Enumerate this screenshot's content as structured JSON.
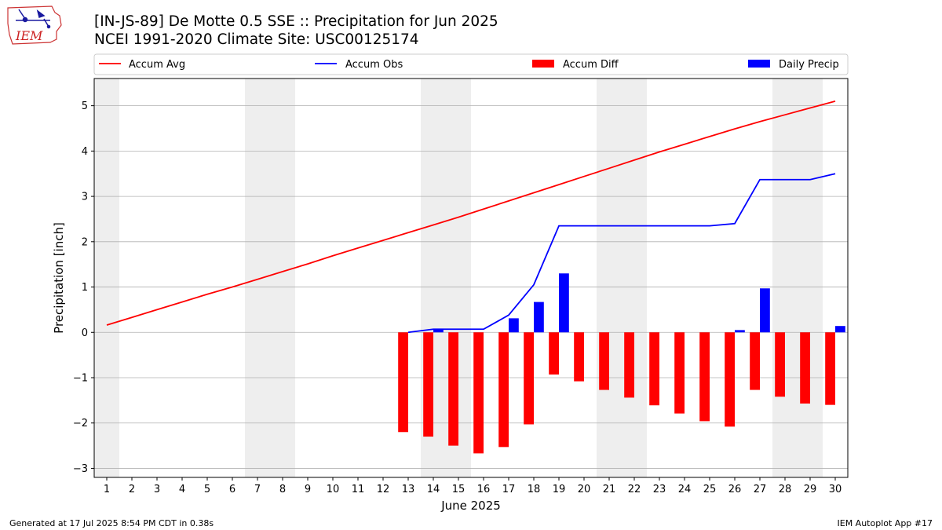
{
  "header": {
    "title_line1": "[IN-JS-89] De Motte 0.5 SSE :: Precipitation for Jun 2025",
    "title_line2": "NCEI 1991-2020 Climate Site: USC00125174",
    "logo_text": "IEM"
  },
  "footer": {
    "generated": "Generated at 17 Jul 2025 8:54 PM CDT in 0.38s",
    "app": "IEM Autoplot App #17"
  },
  "colors": {
    "avg": "#ff0000",
    "obs": "#0000ff",
    "diff": "#ff0000",
    "daily": "#0000ff",
    "weekend_shade": "#eeeeee",
    "grid": "#b0b0b0"
  },
  "chart_data": {
    "type": "bar",
    "xlabel": "June 2025",
    "ylabel": "Precipitation [inch]",
    "ylim": [
      -3.2,
      5.6
    ],
    "yticks": [
      -3,
      -2,
      -1,
      0,
      1,
      2,
      3,
      4,
      5
    ],
    "ytick_labels": [
      "−3",
      "−2",
      "−1",
      "0",
      "1",
      "2",
      "3",
      "4",
      "5"
    ],
    "grid": "horizontal",
    "legend": {
      "placement": "top",
      "entries": [
        "Accum Avg",
        "Accum Obs",
        "Accum Diff",
        "Daily Precip"
      ]
    },
    "days": [
      1,
      2,
      3,
      4,
      5,
      6,
      7,
      8,
      9,
      10,
      11,
      12,
      13,
      14,
      15,
      16,
      17,
      18,
      19,
      20,
      21,
      22,
      23,
      24,
      25,
      26,
      27,
      28,
      29,
      30
    ],
    "weekend_days": [
      1,
      7,
      8,
      14,
      15,
      21,
      22,
      28,
      29
    ],
    "series": [
      {
        "name": "Accum Avg",
        "kind": "line",
        "x": [
          1,
          2,
          3,
          4,
          5,
          6,
          7,
          8,
          9,
          10,
          11,
          12,
          13,
          14,
          15,
          16,
          17,
          18,
          19,
          20,
          21,
          22,
          23,
          24,
          25,
          26,
          27,
          28,
          29,
          30
        ],
        "values": [
          0.16,
          0.33,
          0.5,
          0.67,
          0.84,
          1.0,
          1.17,
          1.34,
          1.51,
          1.69,
          1.86,
          2.03,
          2.2,
          2.37,
          2.54,
          2.72,
          2.9,
          3.08,
          3.26,
          3.44,
          3.62,
          3.8,
          3.98,
          4.15,
          4.32,
          4.49,
          4.65,
          4.8,
          4.95,
          5.1
        ]
      },
      {
        "name": "Accum Obs",
        "kind": "line",
        "x": [
          13,
          14,
          15,
          16,
          17,
          18,
          19,
          20,
          21,
          22,
          23,
          24,
          25,
          26,
          27,
          28,
          29,
          30
        ],
        "values": [
          0.0,
          0.07,
          0.07,
          0.07,
          0.38,
          1.05,
          2.35,
          2.35,
          2.35,
          2.35,
          2.35,
          2.35,
          2.35,
          2.4,
          3.37,
          3.37,
          3.37,
          3.5
        ]
      },
      {
        "name": "Accum Diff",
        "kind": "bar",
        "x": [
          13,
          14,
          15,
          16,
          17,
          18,
          19,
          20,
          21,
          22,
          23,
          24,
          25,
          26,
          27,
          28,
          29,
          30
        ],
        "values": [
          -2.2,
          -2.3,
          -2.5,
          -2.67,
          -2.53,
          -2.03,
          -0.93,
          -1.08,
          -1.27,
          -1.44,
          -1.61,
          -1.79,
          -1.96,
          -2.08,
          -1.27,
          -1.42,
          -1.57,
          -1.6
        ]
      },
      {
        "name": "Daily Precip",
        "kind": "bar",
        "x": [
          14,
          17,
          18,
          19,
          26,
          27,
          30
        ],
        "values": [
          0.07,
          0.31,
          0.67,
          1.3,
          0.05,
          0.97,
          0.14
        ]
      }
    ]
  }
}
